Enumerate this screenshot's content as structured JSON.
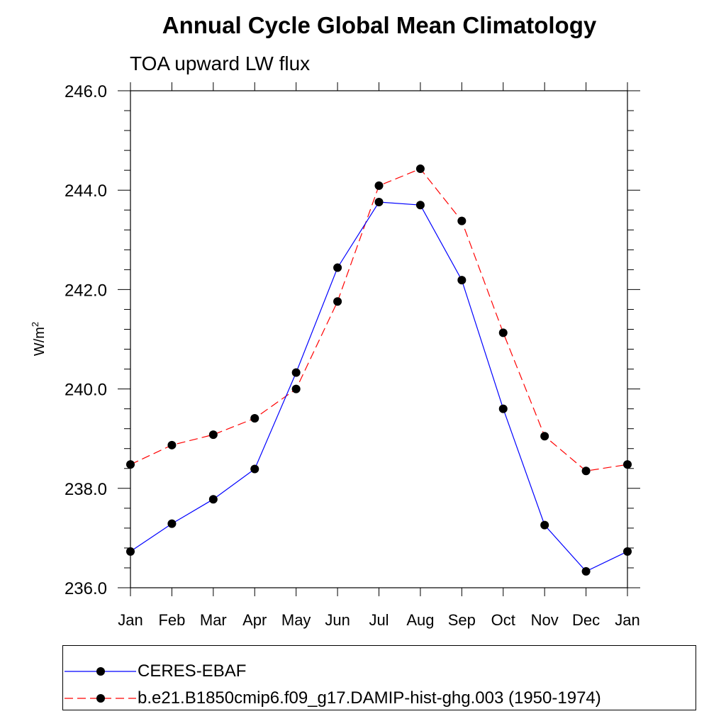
{
  "chart_data": {
    "type": "line",
    "title": "Annual Cycle Global Mean Climatology",
    "subtitle": "TOA upward LW flux",
    "ylabel_base": "W/m",
    "ylabel_sup": "2",
    "xlabel": "",
    "categories": [
      "Jan",
      "Feb",
      "Mar",
      "Apr",
      "May",
      "Jun",
      "Jul",
      "Aug",
      "Sep",
      "Oct",
      "Nov",
      "Dec",
      "Jan"
    ],
    "ylim": [
      236.0,
      246.0
    ],
    "yticks": [
      "236.0",
      "238.0",
      "240.0",
      "242.0",
      "244.0",
      "246.0"
    ],
    "grid": false,
    "legend_position": "bottom",
    "series": [
      {
        "name": "CERES-EBAF",
        "color": "#0000ff",
        "dash": "solid",
        "marker": "filled-circle",
        "values": [
          236.73,
          237.29,
          237.78,
          238.39,
          240.33,
          242.44,
          243.76,
          243.7,
          242.19,
          239.6,
          237.26,
          236.33,
          236.73
        ]
      },
      {
        "name": "b.e21.B1850cmip6.f09_g17.DAMIP-hist-ghg.003 (1950-1974)",
        "color": "#ff0000",
        "dash": "dashed",
        "marker": "filled-circle",
        "values": [
          238.48,
          238.87,
          239.08,
          239.41,
          240.0,
          241.76,
          244.09,
          244.43,
          243.38,
          241.13,
          239.05,
          238.35,
          238.48
        ]
      }
    ]
  }
}
